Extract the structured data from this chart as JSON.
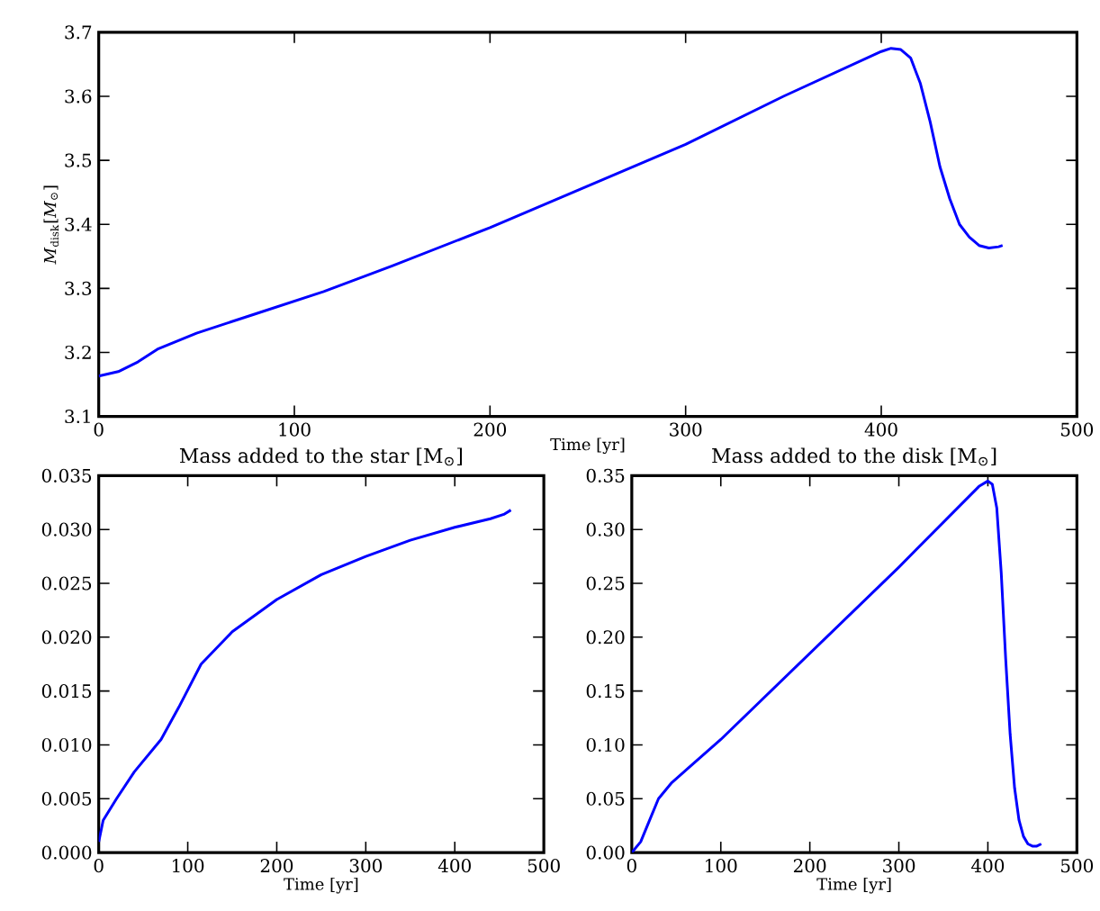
{
  "chart_data": [
    {
      "type": "line",
      "xlabel": "Time [yr]",
      "ylabel": "*M*$_{disk}$[*M*$_{⊙}$]",
      "xlim": [
        0,
        500
      ],
      "ylim": [
        3.1,
        3.7
      ],
      "xticks": [
        0,
        100,
        200,
        300,
        400,
        500
      ],
      "yticks": [
        3.1,
        3.2,
        3.3,
        3.4,
        3.5,
        3.6,
        3.7
      ],
      "series": [
        {
          "color": "#0000ff",
          "x": [
            0,
            10,
            20,
            30,
            50,
            80,
            115,
            150,
            200,
            250,
            300,
            350,
            400,
            405,
            410,
            415,
            420,
            425,
            430,
            435,
            440,
            445,
            450,
            455,
            460,
            462
          ],
          "values": [
            3.163,
            3.17,
            3.185,
            3.205,
            3.23,
            3.26,
            3.295,
            3.335,
            3.395,
            3.46,
            3.525,
            3.6,
            3.67,
            3.675,
            3.673,
            3.66,
            3.62,
            3.56,
            3.49,
            3.44,
            3.4,
            3.38,
            3.367,
            3.363,
            3.365,
            3.367
          ]
        }
      ]
    },
    {
      "type": "line",
      "title": "Mass added to the star [M$_{⊙}$]",
      "xlabel": "Time [yr]",
      "xlim": [
        0,
        500
      ],
      "ylim": [
        0,
        0.035
      ],
      "xticks": [
        0,
        100,
        200,
        300,
        400,
        500
      ],
      "yticks": [
        {
          "value": 0,
          "label": "0.000"
        },
        0.005,
        {
          "value": 0.01,
          "label": "0.010"
        },
        0.015,
        {
          "value": 0.02,
          "label": "0.020"
        },
        0.025,
        {
          "value": 0.03,
          "label": "0.030"
        },
        0.035
      ],
      "series": [
        {
          "color": "#0000ff",
          "x": [
            0,
            5,
            20,
            40,
            70,
            90,
            115,
            150,
            200,
            250,
            300,
            350,
            400,
            440,
            455,
            463
          ],
          "values": [
            0.001,
            0.003,
            0.005,
            0.0075,
            0.0105,
            0.0135,
            0.0175,
            0.0205,
            0.0235,
            0.0258,
            0.0275,
            0.029,
            0.0302,
            0.031,
            0.0314,
            0.0318
          ]
        }
      ]
    },
    {
      "type": "line",
      "title": "Mass added to the disk [M$_{⊙}$]",
      "xlabel": "Time [yr]",
      "xlim": [
        0,
        500
      ],
      "ylim": [
        0,
        0.35
      ],
      "xticks": [
        0,
        100,
        200,
        300,
        400,
        500
      ],
      "yticks": [
        {
          "value": 0,
          "label": "0.00"
        },
        0.05,
        {
          "value": 0.1,
          "label": "0.10"
        },
        0.15,
        {
          "value": 0.2,
          "label": "0.20"
        },
        0.25,
        {
          "value": 0.3,
          "label": "0.30"
        },
        0.35
      ],
      "series": [
        {
          "color": "#0000ff",
          "x": [
            0,
            10,
            20,
            30,
            45,
            100,
            200,
            300,
            390,
            400,
            405,
            410,
            415,
            420,
            425,
            430,
            435,
            440,
            445,
            450,
            455,
            460
          ],
          "values": [
            0,
            0.01,
            0.03,
            0.05,
            0.065,
            0.105,
            0.185,
            0.265,
            0.34,
            0.345,
            0.342,
            0.32,
            0.26,
            0.18,
            0.11,
            0.06,
            0.03,
            0.015,
            0.008,
            0.006,
            0.006,
            0.008
          ]
        }
      ]
    }
  ]
}
